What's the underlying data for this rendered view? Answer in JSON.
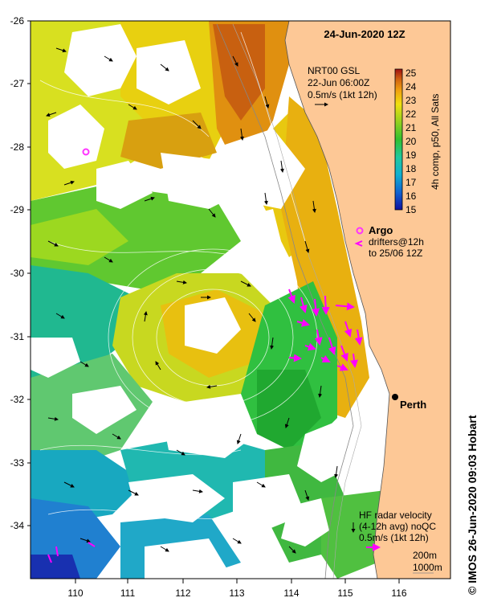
{
  "map": {
    "title": "24-Jun-2020 12Z",
    "lat_ticks": [
      "-26",
      "-27",
      "-28",
      "-29",
      "-30",
      "-31",
      "-32",
      "-33",
      "-34"
    ],
    "lon_ticks": [
      "110",
      "111",
      "112",
      "113",
      "114",
      "115",
      "116"
    ],
    "lon_range": [
      109.2,
      116.9
    ],
    "lat_range": [
      -34.8,
      -26.0
    ],
    "land_color": "#fdc896",
    "gsl_note": {
      "line1": "NRT00 GSL",
      "line2": "22-Jun 06:00Z",
      "line3": "0.5m/s (1kt 12h)"
    },
    "colorbar": {
      "ticks": [
        "25",
        "24",
        "23",
        "22",
        "21",
        "20",
        "19",
        "18",
        "17",
        "16",
        "15"
      ],
      "label": "4h comp, p50, All Sats",
      "range": [
        15,
        25
      ]
    },
    "legend": {
      "argo": "Argo",
      "drifters_line1": "drifters@12h",
      "drifters_line2": "to 25/06 12Z",
      "hf_line1": "HF radar velocity",
      "hf_line2": "(4-12h avg) noQC",
      "hf_line3": "0.5m/s (1kt 12h)",
      "depth_200": "200m",
      "depth_1000": "1000m"
    },
    "city": "Perth",
    "credit": "© IMOS 26-Jun-2020 09:03 Hobart",
    "colors": {
      "argo": "#ff33ff",
      "drifter": "#ff00ff",
      "hf": "#ff00ff"
    }
  }
}
